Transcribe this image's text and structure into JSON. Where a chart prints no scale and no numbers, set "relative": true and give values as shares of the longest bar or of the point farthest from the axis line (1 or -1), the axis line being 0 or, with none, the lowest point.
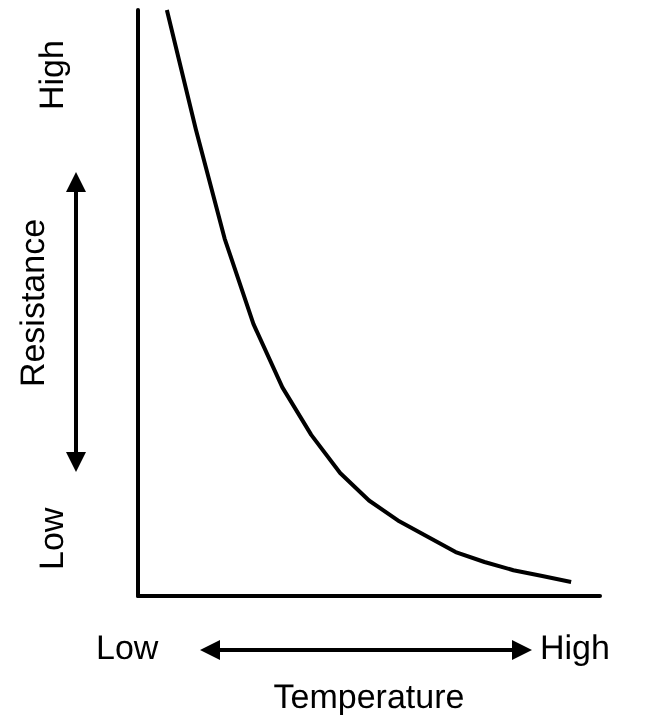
{
  "chart_data": {
    "type": "line",
    "relative": true,
    "xlabel": "Temperature",
    "ylabel": "Resistance",
    "annotations": [
      "Low",
      "High",
      "Low",
      "High"
    ],
    "categories": [
      null,
      null,
      null,
      null,
      null,
      null,
      null,
      null,
      null,
      null,
      null,
      null,
      null,
      null,
      null,
      null,
      null
    ],
    "series": [
      {
        "color": "#000000",
        "values": [
          null,
          1,
          0.797,
          0.61,
          0.464,
          0.356,
          0.275,
          0.21,
          0.163,
          0.129,
          0.102,
          0.075,
          0.058,
          0.044,
          0.034,
          0.024,
          null
        ]
      }
    ],
    "marker": "none"
  }
}
